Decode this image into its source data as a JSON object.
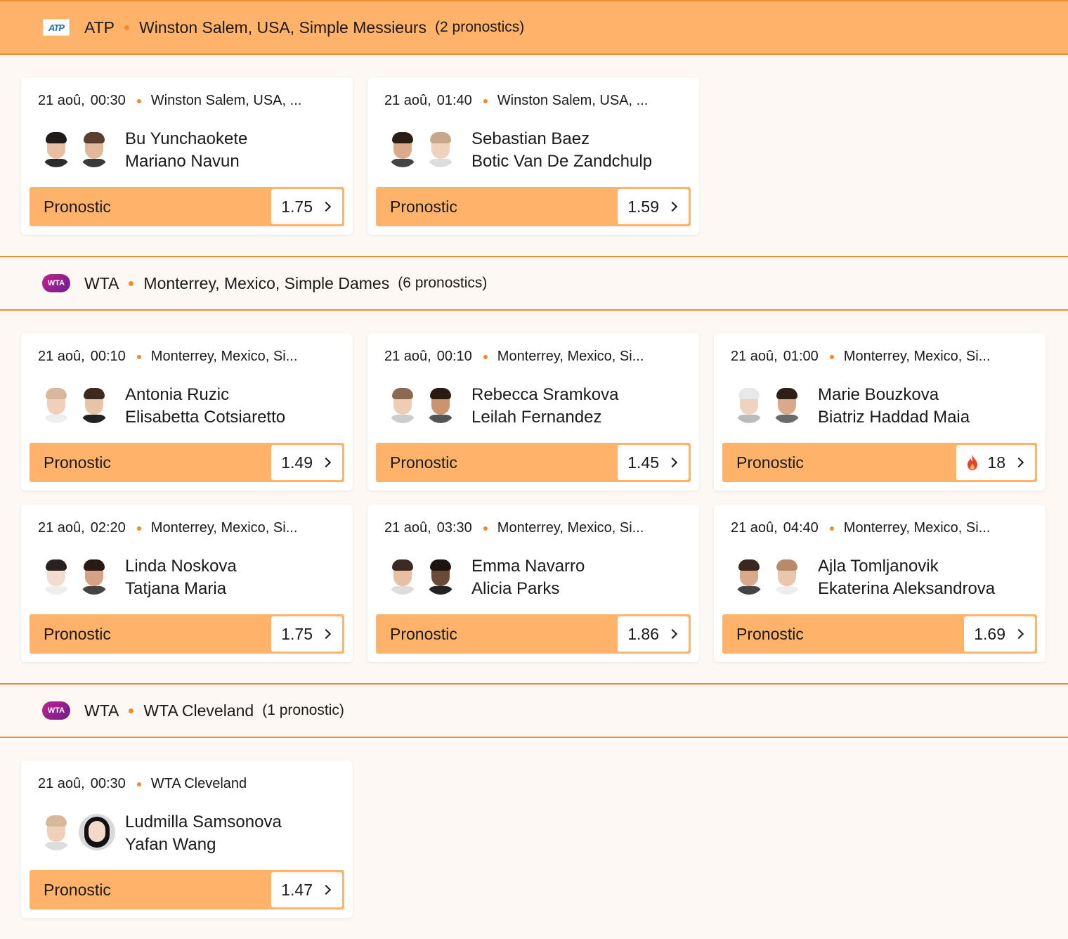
{
  "sections": [
    {
      "tour": "ATP",
      "tournament": "Winston Salem, USA, Simple Messieurs",
      "count": "(2 pronostics)",
      "logo": "atp-logo",
      "logo_text": "ATP",
      "cards": [
        {
          "date": "21 aoû,",
          "time": "00:30",
          "venue": "Winston Salem, USA, ...",
          "player1": "Bu Yunchaokete",
          "player2": "Mariano Navun",
          "label": "Pronostic",
          "odds": "1.75"
        },
        {
          "date": "21 aoû,",
          "time": "01:40",
          "venue": "Winston Salem, USA, ...",
          "player1": "Sebastian Baez",
          "player2": "Botic Van De Zandchulp",
          "label": "Pronostic",
          "odds": "1.59"
        }
      ]
    },
    {
      "tour": "WTA",
      "tournament": "Monterrey, Mexico, Simple Dames",
      "count": "(6 pronostics)",
      "logo": "wta-logo",
      "logo_text": "WTA",
      "cards": [
        {
          "date": "21 aoû,",
          "time": "00:10",
          "venue": "Monterrey, Mexico, Si...",
          "player1": "Antonia Ruzic",
          "player2": "Elisabetta Cotsiaretto",
          "label": "Pronostic",
          "odds": "1.49"
        },
        {
          "date": "21 aoû,",
          "time": "00:10",
          "venue": "Monterrey, Mexico, Si...",
          "player1": "Rebecca Sramkova",
          "player2": "Leilah Fernandez",
          "label": "Pronostic",
          "odds": "1.45"
        },
        {
          "date": "21 aoû,",
          "time": "01:00",
          "venue": "Monterrey, Mexico, Si...",
          "player1": "Marie Bouzkova",
          "player2": "Biatriz Haddad Maia",
          "label": "Pronostic",
          "odds": "18",
          "hot": true
        },
        {
          "date": "21 aoû,",
          "time": "02:20",
          "venue": "Monterrey, Mexico, Si...",
          "player1": "Linda Noskova",
          "player2": "Tatjana Maria",
          "label": "Pronostic",
          "odds": "1.75"
        },
        {
          "date": "21 aoû,",
          "time": "03:30",
          "venue": "Monterrey, Mexico, Si...",
          "player1": "Emma Navarro",
          "player2": "Alicia Parks",
          "label": "Pronostic",
          "odds": "1.86"
        },
        {
          "date": "21 aoû,",
          "time": "04:40",
          "venue": "Monterrey, Mexico, Si...",
          "player1": "Ajla Tomljanovik",
          "player2": "Ekaterina Aleksandrova",
          "label": "Pronostic",
          "odds": "1.69"
        }
      ]
    },
    {
      "tour": "WTA",
      "tournament": "WTA Cleveland",
      "count": "(1 pronostic)",
      "logo": "wta-logo",
      "logo_text": "WTA",
      "cards": [
        {
          "date": "21 aoû,",
          "time": "00:30",
          "venue": "WTA Cleveland",
          "player1": "Ludmilla Samsonova",
          "player2": "Yafan Wang",
          "label": "Pronostic",
          "odds": "1.47"
        }
      ]
    }
  ],
  "colors": {
    "accent": "#ffb26a",
    "accent_line": "#f28a2e",
    "background": "#fdf8f3",
    "fire": "#e8402a"
  },
  "icons": {
    "chevron": "chevron-right-icon",
    "hot": "fire-icon"
  }
}
